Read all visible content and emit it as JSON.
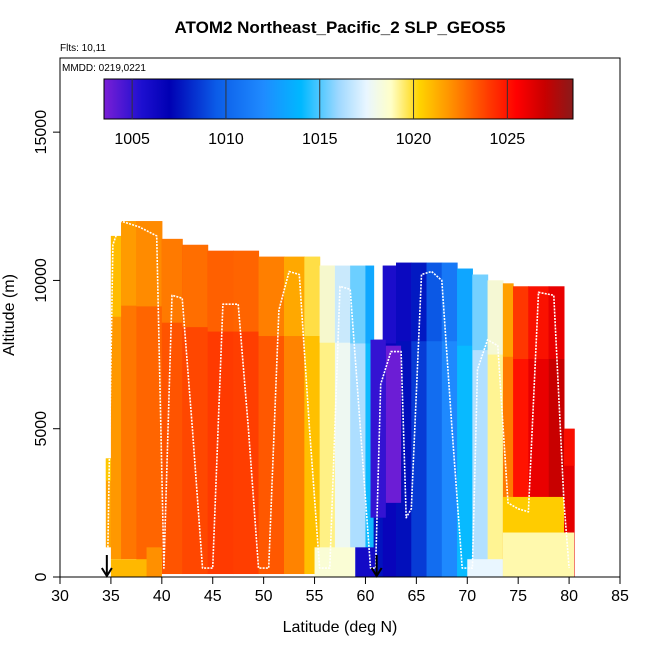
{
  "chart_data": {
    "type": "heatmap",
    "title": "ATOM2 Northeast_Pacific_2 SLP_GEOS5",
    "subtitle_flights": "Flts: 10,11",
    "subtitle_dates": "MMDD: 0219,0221",
    "xlabel": "Latitude (deg N)",
    "ylabel": "Altitude (m)",
    "xlim": [
      30,
      85
    ],
    "ylim": [
      0,
      17500
    ],
    "x_ticks": [
      30,
      35,
      40,
      45,
      50,
      55,
      60,
      65,
      70,
      75,
      80,
      85
    ],
    "y_ticks": [
      0,
      5000,
      10000,
      15000
    ],
    "colorbar": {
      "range": [
        1003.5,
        1028.5
      ],
      "ticks": [
        1005,
        1010,
        1015,
        1020,
        1025
      ],
      "stops": [
        {
          "value": 1003.5,
          "color": "#7a1fd6"
        },
        {
          "value": 1005.5,
          "color": "#1d0fd0"
        },
        {
          "value": 1007.0,
          "color": "#0000b3"
        },
        {
          "value": 1009.5,
          "color": "#0b5ce8"
        },
        {
          "value": 1012.0,
          "color": "#1f8bff"
        },
        {
          "value": 1014.0,
          "color": "#00b8ff"
        },
        {
          "value": 1016.0,
          "color": "#9ed8ff"
        },
        {
          "value": 1017.5,
          "color": "#e9f6ff"
        },
        {
          "value": 1018.8,
          "color": "#ffffc8"
        },
        {
          "value": 1020.3,
          "color": "#ffd400"
        },
        {
          "value": 1022.0,
          "color": "#ff9000"
        },
        {
          "value": 1024.0,
          "color": "#ff3a00"
        },
        {
          "value": 1025.5,
          "color": "#ff0000"
        },
        {
          "value": 1027.0,
          "color": "#c80000"
        },
        {
          "value": 1028.5,
          "color": "#8a1a1a"
        }
      ]
    },
    "curtain": [
      {
        "lat": [
          34.5,
          35.0
        ],
        "alt": [
          1000,
          4000
        ],
        "slp": 1021.5
      },
      {
        "lat": [
          35.0,
          36.0
        ],
        "alt": [
          600,
          11500
        ],
        "slp": 1021.8
      },
      {
        "lat": [
          36.0,
          37.5
        ],
        "alt": [
          600,
          12000
        ],
        "slp": 1022.6
      },
      {
        "lat": [
          37.5,
          40.0
        ],
        "alt": [
          500,
          12000
        ],
        "slp": 1023.0
      },
      {
        "lat": [
          40.0,
          42.0
        ],
        "alt": [
          100,
          11400
        ],
        "slp": 1023.4
      },
      {
        "lat": [
          42.0,
          44.5
        ],
        "alt": [
          100,
          11200
        ],
        "slp": 1023.7
      },
      {
        "lat": [
          44.5,
          47.0
        ],
        "alt": [
          100,
          11000
        ],
        "slp": 1024.0
      },
      {
        "lat": [
          47.0,
          49.5
        ],
        "alt": [
          100,
          11000
        ],
        "slp": 1023.9
      },
      {
        "lat": [
          49.5,
          52.0
        ],
        "alt": [
          100,
          10800
        ],
        "slp": 1023.3
      },
      {
        "lat": [
          52.0,
          54.0
        ],
        "alt": [
          100,
          10800
        ],
        "slp": 1022.3
      },
      {
        "lat": [
          54.0,
          55.5
        ],
        "alt": [
          100,
          10800
        ],
        "slp": 1020.8
      },
      {
        "lat": [
          55.5,
          57.0
        ],
        "alt": [
          100,
          10500
        ],
        "slp": 1019.3
      },
      {
        "lat": [
          57.0,
          58.5
        ],
        "alt": [
          100,
          10500
        ],
        "slp": 1017.8
      },
      {
        "lat": [
          58.5,
          60.0
        ],
        "alt": [
          0,
          10500
        ],
        "slp": 1016.3
      },
      {
        "lat": [
          60.0,
          60.8
        ],
        "alt": [
          0,
          10500
        ],
        "slp": 1014.2
      },
      {
        "lat": [
          60.8,
          61.7
        ],
        "alt": [
          0,
          8000
        ],
        "slp": 1007.5
      },
      {
        "lat": [
          61.7,
          63.0
        ],
        "alt": [
          0,
          10500
        ],
        "slp": 1006.6
      },
      {
        "lat": [
          63.0,
          64.5
        ],
        "alt": [
          0,
          10600
        ],
        "slp": 1007.4
      },
      {
        "lat": [
          64.5,
          66.0
        ],
        "alt": [
          0,
          10600
        ],
        "slp": 1008.6
      },
      {
        "lat": [
          66.0,
          67.5
        ],
        "alt": [
          0,
          10600
        ],
        "slp": 1010.4
      },
      {
        "lat": [
          67.5,
          69.0
        ],
        "alt": [
          0,
          10600
        ],
        "slp": 1011.9
      },
      {
        "lat": [
          69.0,
          70.5
        ],
        "alt": [
          0,
          10400
        ],
        "slp": 1014.1
      },
      {
        "lat": [
          70.5,
          72.0
        ],
        "alt": [
          0,
          10200
        ],
        "slp": 1016.4
      },
      {
        "lat": [
          72.0,
          73.5
        ],
        "alt": [
          0,
          10000
        ],
        "slp": 1019.2
      },
      {
        "lat": [
          73.5,
          74.5
        ],
        "alt": [
          0,
          9900
        ],
        "slp": 1022.5
      },
      {
        "lat": [
          74.5,
          76.0
        ],
        "alt": [
          0,
          9800
        ],
        "slp": 1025.0
      },
      {
        "lat": [
          76.0,
          78.0
        ],
        "alt": [
          0,
          9800
        ],
        "slp": 1026.1
      },
      {
        "lat": [
          78.0,
          79.5
        ],
        "alt": [
          0,
          9800
        ],
        "slp": 1027.0
      },
      {
        "lat": [
          79.5,
          80.5
        ],
        "alt": [
          0,
          5000
        ],
        "slp": 1026.2
      }
    ],
    "overlays": [
      {
        "lat": [
          35.0,
          40.0
        ],
        "alt": [
          0,
          600
        ],
        "slp": 1021.0
      },
      {
        "lat": [
          38.5,
          40.0
        ],
        "alt": [
          0,
          1000
        ],
        "slp": 1022.0
      },
      {
        "lat": [
          55.0,
          59.0
        ],
        "alt": [
          0,
          1000
        ],
        "slp": 1018.5
      },
      {
        "lat": [
          59.0,
          61.0
        ],
        "alt": [
          0,
          1000
        ],
        "slp": 1006.0
      },
      {
        "lat": [
          60.5,
          62.0
        ],
        "alt": [
          2000,
          8000
        ],
        "slp": 1005.0
      },
      {
        "lat": [
          62.0,
          63.5
        ],
        "alt": [
          2500,
          7800
        ],
        "slp": 1003.8
      },
      {
        "lat": [
          70.0,
          73.5
        ],
        "alt": [
          0,
          600
        ],
        "slp": 1017.5
      },
      {
        "lat": [
          73.5,
          79.5
        ],
        "alt": [
          1500,
          2700
        ],
        "slp": 1020.5
      },
      {
        "lat": [
          73.5,
          80.5
        ],
        "alt": [
          0,
          1500
        ],
        "slp": 1019.0
      }
    ],
    "flight_track": {
      "lat": [
        34.7,
        35.2,
        36.0,
        37.8,
        39.5,
        40.2,
        41.0,
        42.0,
        43.0,
        44.0,
        45.0,
        46.0,
        47.5,
        48.5,
        49.5,
        50.5,
        51.5,
        52.5,
        53.5,
        54.5,
        55.5,
        56.5,
        57.5,
        58.5,
        59.5,
        60.5,
        61.0,
        61.5,
        62.5,
        63.5,
        64.0,
        64.5,
        65.5,
        66.5,
        67.5,
        68.5,
        69.5,
        70.0,
        70.5,
        71.0,
        72.0,
        73.0,
        74.0,
        75.0,
        76.0,
        77.0,
        78.5,
        79.5,
        80.0
      ],
      "alt": [
        1000,
        11200,
        12000,
        11800,
        11500,
        300,
        9500,
        9400,
        5000,
        300,
        300,
        9200,
        9200,
        5000,
        300,
        300,
        9000,
        10300,
        10200,
        5000,
        300,
        300,
        9800,
        9700,
        5000,
        300,
        300,
        6500,
        7600,
        7600,
        2000,
        2300,
        10200,
        10300,
        10000,
        5000,
        300,
        300,
        300,
        7000,
        8000,
        7800,
        2500,
        2300,
        2200,
        9600,
        9500,
        2500,
        300
      ]
    },
    "markers": [
      34.6,
      61.1
    ]
  }
}
